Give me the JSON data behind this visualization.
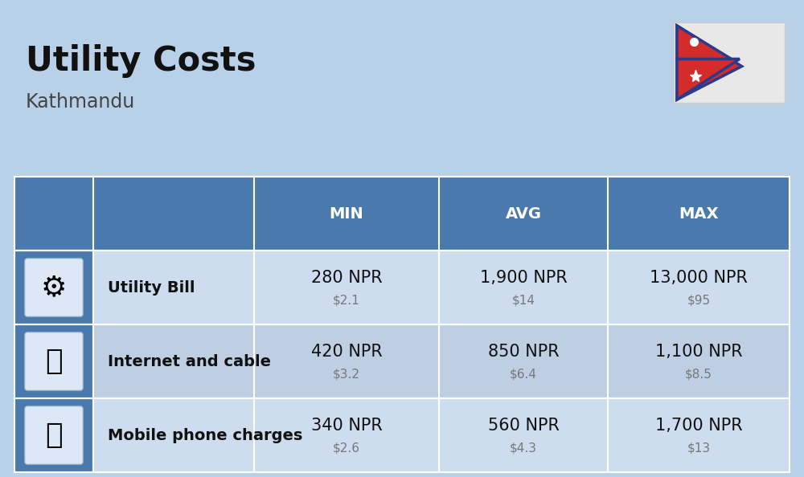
{
  "title": "Utility Costs",
  "subtitle": "Kathmandu",
  "background_color": "#b8d0e8",
  "header_bg_color": "#4a7aad",
  "header_text_color": "#ffffff",
  "row_bg_color_odd": "#cddcee",
  "row_bg_color_even": "#bfcfe3",
  "icon_col_bg": "#9ab4cc",
  "col_headers": [
    "MIN",
    "AVG",
    "MAX"
  ],
  "rows": [
    {
      "label": "Utility Bill",
      "icon": "utility",
      "min_npr": "280 NPR",
      "min_usd": "$2.1",
      "avg_npr": "1,900 NPR",
      "avg_usd": "$14",
      "max_npr": "13,000 NPR",
      "max_usd": "$95"
    },
    {
      "label": "Internet and cable",
      "icon": "internet",
      "min_npr": "420 NPR",
      "min_usd": "$3.2",
      "avg_npr": "850 NPR",
      "avg_usd": "$6.4",
      "max_npr": "1,100 NPR",
      "max_usd": "$8.5"
    },
    {
      "label": "Mobile phone charges",
      "icon": "mobile",
      "min_npr": "340 NPR",
      "min_usd": "$2.6",
      "avg_npr": "560 NPR",
      "avg_usd": "$4.3",
      "max_npr": "1,700 NPR",
      "max_usd": "$13"
    }
  ],
  "title_fontsize": 30,
  "subtitle_fontsize": 17,
  "header_fontsize": 14,
  "label_fontsize": 14,
  "value_fontsize": 15,
  "usd_fontsize": 11,
  "flag_border_color": "#2b3a8a",
  "flag_red_color": "#d42b2b",
  "flag_white_color": "#f0f0f0"
}
